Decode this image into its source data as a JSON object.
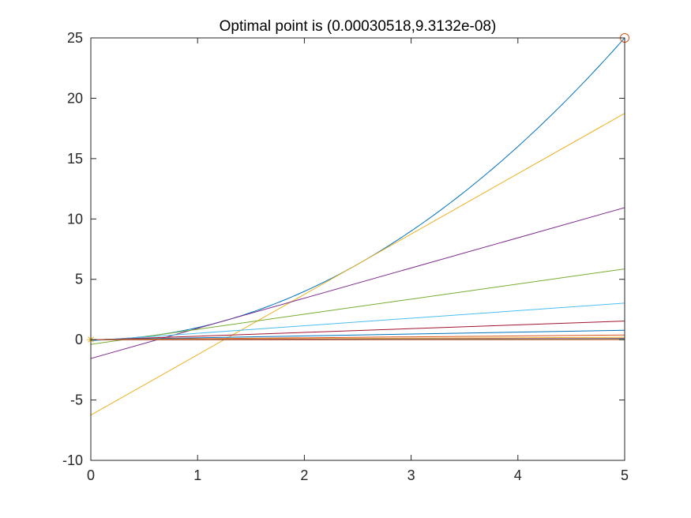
{
  "chart_data": {
    "type": "line",
    "title": "Optimal point is (0.00030518,9.3132e-08)",
    "xlabel": "",
    "ylabel": "",
    "xlim": [
      0,
      5
    ],
    "ylim": [
      -10,
      25
    ],
    "xticks": [
      "0",
      "1",
      "2",
      "3",
      "4",
      "5"
    ],
    "yticks": [
      "-10",
      "-5",
      "0",
      "5",
      "10",
      "15",
      "20",
      "25"
    ],
    "grid": false,
    "curve": {
      "function": "x^2",
      "x_range": [
        0,
        5
      ],
      "color": "#0072BD"
    },
    "tangent_lines": [
      {
        "tangent_x": 2.5,
        "color": "#EDB120"
      },
      {
        "tangent_x": 1.25,
        "color": "#7E2F8E"
      },
      {
        "tangent_x": 0.625,
        "color": "#77AC30"
      },
      {
        "tangent_x": 0.3125,
        "color": "#4DBEEE"
      },
      {
        "tangent_x": 0.15625,
        "color": "#A2142F"
      },
      {
        "tangent_x": 0.078125,
        "color": "#0072BD"
      },
      {
        "tangent_x": 0.0390625,
        "color": "#D95319"
      },
      {
        "tangent_x": 0.01953125,
        "color": "#EDB120"
      },
      {
        "tangent_x": 0.009765625,
        "color": "#7E2F8E"
      },
      {
        "tangent_x": 0.0048828125,
        "color": "#77AC30"
      },
      {
        "tangent_x": 0.00244140625,
        "color": "#4DBEEE"
      },
      {
        "tangent_x": 0.001220703125,
        "color": "#A2142F"
      },
      {
        "tangent_x": 0.0006103515625,
        "color": "#0072BD"
      },
      {
        "tangent_x": 0.00030517578125,
        "color": "#D95319"
      }
    ],
    "markers": [
      {
        "name": "start-point",
        "x": 5,
        "y": 25,
        "symbol": "circle",
        "color": "#D95319"
      },
      {
        "name": "optimal-point",
        "x": 0.00030518,
        "y": 9.3132e-08,
        "symbol": "asterisk",
        "color": "#EDB120"
      }
    ]
  }
}
